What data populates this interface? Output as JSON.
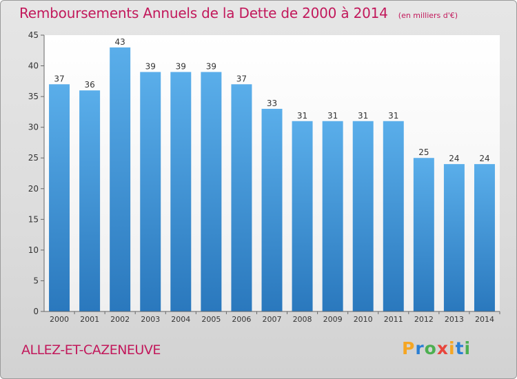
{
  "title": "Remboursements Annuels de la Dette de 2000 à 2014",
  "subtitle": "(en milliers d'€)",
  "commune": "ALLEZ-ET-CAZENEUVE",
  "logo": {
    "text": "Proxiti",
    "letters": [
      "P",
      "r",
      "o",
      "x",
      "i",
      "t",
      "i"
    ],
    "colors": [
      "#f5a623",
      "#2a7fd4",
      "#4caf50",
      "#e8453c",
      "#f5a623",
      "#2a7fd4",
      "#4caf50"
    ]
  },
  "colors": {
    "title": "#c2185b",
    "bar_top": "#5aaeea",
    "bar_bottom": "#2a78bd",
    "background": "#dddddd"
  },
  "chart_data": {
    "type": "bar",
    "title": "Remboursements Annuels de la Dette de 2000 à 2014",
    "subtitle": "(en milliers d'€)",
    "categories": [
      "2000",
      "2001",
      "2002",
      "2003",
      "2004",
      "2005",
      "2006",
      "2007",
      "2008",
      "2009",
      "2010",
      "2011",
      "2012",
      "2013",
      "2014"
    ],
    "values": [
      37,
      36,
      43,
      39,
      39,
      39,
      37,
      33,
      31,
      31,
      31,
      31,
      25,
      24,
      24
    ],
    "ylim": [
      0,
      45
    ],
    "yticks": [
      0,
      5,
      10,
      15,
      20,
      25,
      30,
      35,
      40,
      45
    ],
    "grid": false,
    "data_labels": true
  }
}
